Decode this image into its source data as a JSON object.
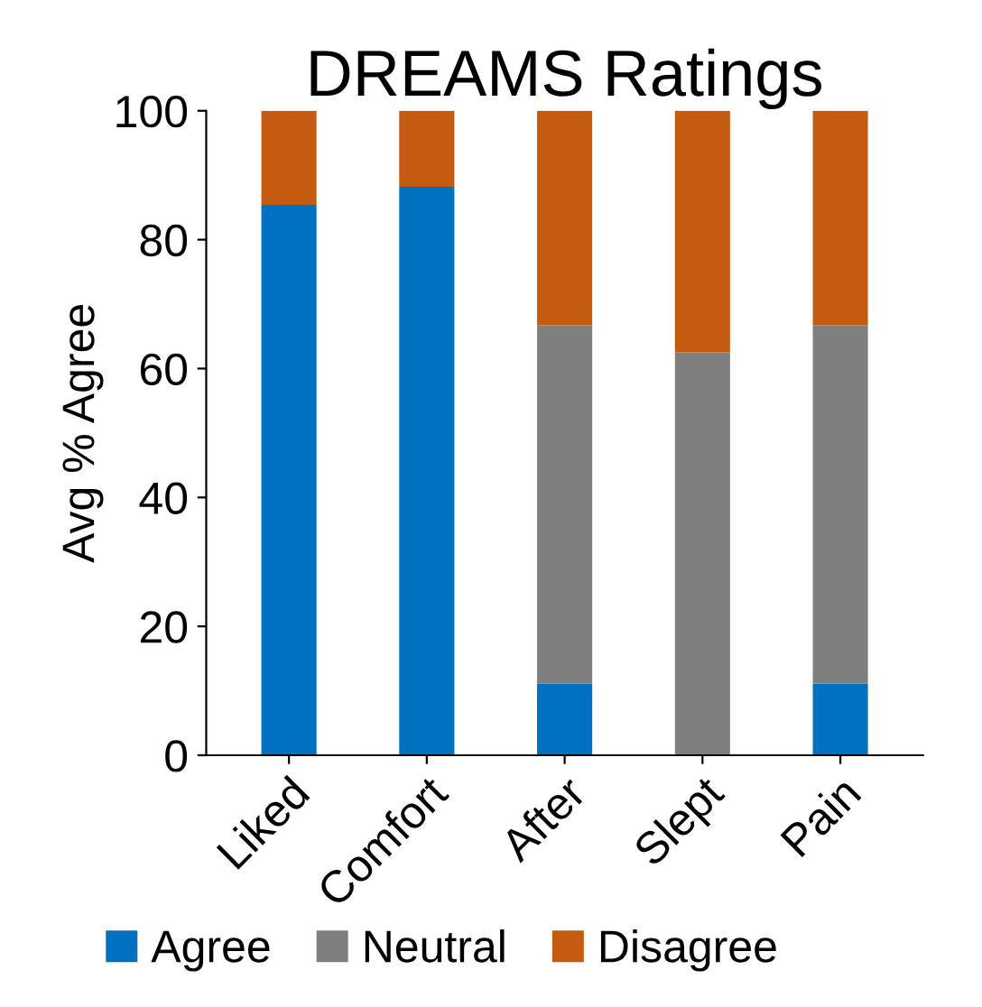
{
  "chart_data": {
    "type": "bar",
    "title": "DREAMS Ratings",
    "ylabel": "Avg % Agree",
    "stacked": true,
    "categories": [
      "Liked",
      "Comfort",
      "After",
      "Slept",
      "Pain"
    ],
    "series": [
      {
        "name": "Agree",
        "color": "#0070c0",
        "values": [
          85.4,
          88.2,
          11.1,
          0,
          11.1
        ]
      },
      {
        "name": "Neutral",
        "color": "#7f7f7f",
        "values": [
          0,
          0,
          55.6,
          62.5,
          55.6
        ]
      },
      {
        "name": "Disagree",
        "color": "#c55a11",
        "values": [
          14.6,
          11.8,
          33.3,
          37.5,
          33.3
        ]
      }
    ],
    "ylim": [
      0,
      100
    ],
    "yticks": [
      0,
      20,
      40,
      60,
      80,
      100
    ],
    "grid": false,
    "legend": "bottom"
  }
}
